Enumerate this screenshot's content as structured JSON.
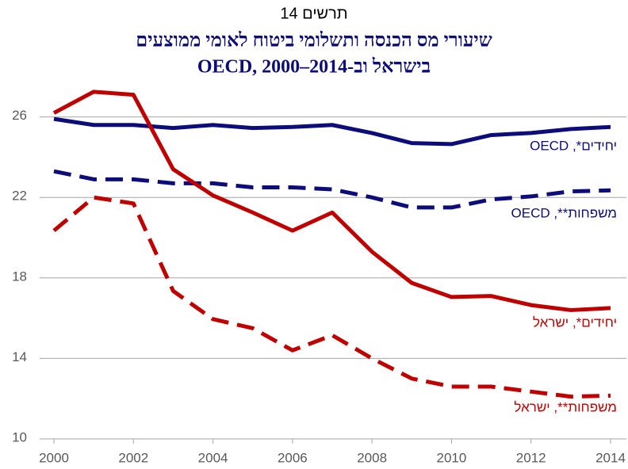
{
  "chart_data": {
    "type": "line",
    "figure_label": "תרשים 14",
    "title": "שיעורי מס הכנסה ותשלומי ביטוח לאומי ממוצעים",
    "subtitle": "בישראל וב-OECD, 2000–2014",
    "x": [
      2000,
      2001,
      2002,
      2003,
      2004,
      2005,
      2006,
      2007,
      2008,
      2009,
      2010,
      2011,
      2012,
      2013,
      2014
    ],
    "xlim": [
      2000,
      2014
    ],
    "xticks": [
      2000,
      2002,
      2004,
      2006,
      2008,
      2010,
      2012,
      2014
    ],
    "ylim": [
      10,
      27.5
    ],
    "yticks": [
      10,
      14,
      18,
      22,
      26
    ],
    "grid": true,
    "series": [
      {
        "name": "יחידים*, OECD",
        "color": "#0c0c7a",
        "dash": false,
        "values": [
          25.9,
          25.6,
          25.6,
          25.45,
          25.6,
          25.45,
          25.5,
          25.6,
          25.2,
          24.7,
          24.65,
          25.1,
          25.2,
          25.4,
          25.5
        ]
      },
      {
        "name": "משפחות**, OECD",
        "color": "#0c0c7a",
        "dash": true,
        "values": [
          23.3,
          22.9,
          22.9,
          22.7,
          22.7,
          22.5,
          22.5,
          22.4,
          22.0,
          21.5,
          21.5,
          21.9,
          22.05,
          22.3,
          22.35
        ]
      },
      {
        "name": "יחידים*, ישראל",
        "color": "#c00000",
        "dash": false,
        "values": [
          26.2,
          27.25,
          27.1,
          23.4,
          22.1,
          21.25,
          20.35,
          21.25,
          19.3,
          17.75,
          17.05,
          17.1,
          16.65,
          16.4,
          16.5
        ]
      },
      {
        "name": "משפחות**, ישראל",
        "color": "#c00000",
        "dash": true,
        "values": [
          20.35,
          22.0,
          21.7,
          17.35,
          15.95,
          15.5,
          14.4,
          15.15,
          14.0,
          13.0,
          12.6,
          12.6,
          12.35,
          12.1,
          12.15
        ]
      }
    ]
  }
}
